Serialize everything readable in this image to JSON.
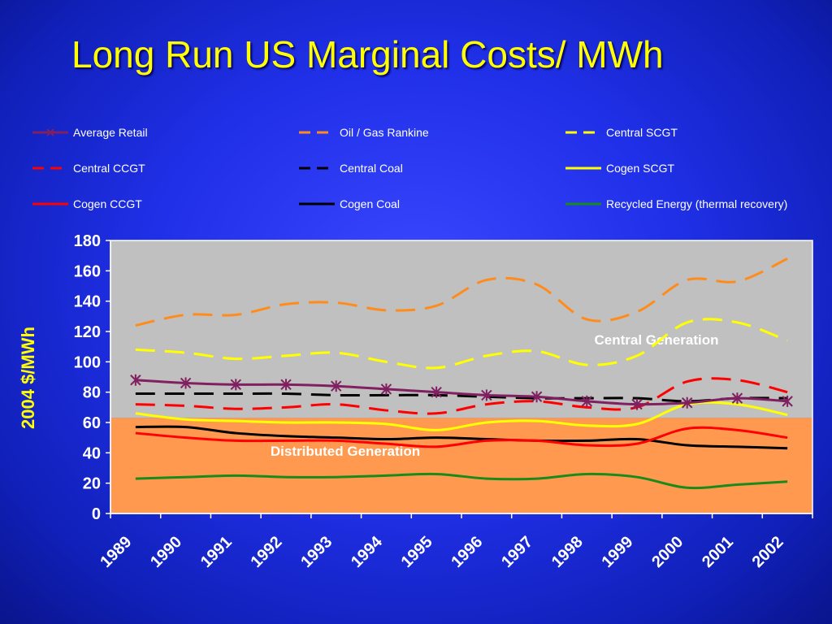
{
  "slide": {
    "title": "Long Run US Marginal Costs/ MWh"
  },
  "chart_data": {
    "type": "line",
    "ylabel": "2004 $/MWh",
    "ylim": [
      0,
      180
    ],
    "yticks": [
      0,
      20,
      40,
      60,
      80,
      100,
      120,
      140,
      160,
      180
    ],
    "categories": [
      "1989",
      "1990",
      "1991",
      "1992",
      "1993",
      "1994",
      "1995",
      "1996",
      "1997",
      "1998",
      "1999",
      "2000",
      "2001",
      "2002"
    ],
    "legend_position": "top",
    "plot_background": "#c0c0c0",
    "regions": [
      {
        "label": "Central Generation",
        "y_from": 63,
        "y_to": 180,
        "color": "#c0c0c0"
      },
      {
        "label": "Distributed Generation",
        "y_from": 0,
        "y_to": 63,
        "color": "#ff9950"
      }
    ],
    "series": [
      {
        "name": "Average Retail",
        "color": "#802060",
        "style": "solid-marker",
        "values": [
          88,
          86,
          85,
          85,
          84,
          82,
          80,
          78,
          77,
          74,
          72,
          73,
          76,
          74
        ]
      },
      {
        "name": "Oil / Gas Rankine",
        "color": "#ff8c1a",
        "style": "dashed",
        "values": [
          124,
          131,
          131,
          138,
          139,
          134,
          137,
          154,
          151,
          128,
          133,
          154,
          153,
          168
        ]
      },
      {
        "name": "Central SCGT",
        "color": "#ffff00",
        "style": "dashed",
        "values": [
          108,
          106,
          102,
          104,
          106,
          100,
          96,
          104,
          107,
          98,
          104,
          126,
          126,
          114
        ]
      },
      {
        "name": "Central CCGT",
        "color": "#ff0000",
        "style": "dashed",
        "values": [
          72,
          71,
          69,
          70,
          72,
          68,
          66,
          72,
          74,
          70,
          70,
          87,
          88,
          80
        ]
      },
      {
        "name": "Central Coal",
        "color": "#000000",
        "style": "dashed",
        "values": [
          79,
          79,
          79,
          79,
          78,
          78,
          78,
          77,
          76,
          76,
          76,
          74,
          76,
          76
        ]
      },
      {
        "name": "Cogen SCGT",
        "color": "#ffff00",
        "style": "solid",
        "values": [
          66,
          62,
          61,
          60,
          60,
          59,
          55,
          60,
          61,
          58,
          59,
          72,
          72,
          65
        ]
      },
      {
        "name": "Cogen CCGT",
        "color": "#ff0000",
        "style": "solid",
        "values": [
          53,
          50,
          48,
          48,
          48,
          46,
          44,
          48,
          48,
          45,
          46,
          56,
          55,
          50
        ]
      },
      {
        "name": "Cogen Coal",
        "color": "#000000",
        "style": "solid",
        "values": [
          57,
          57,
          53,
          51,
          50,
          49,
          50,
          49,
          48,
          48,
          49,
          45,
          44,
          43
        ]
      },
      {
        "name": "Recycled Energy (thermal recovery)",
        "color": "#1a8a1a",
        "style": "solid",
        "values": [
          23,
          24,
          25,
          24,
          24,
          25,
          26,
          23,
          23,
          26,
          24,
          17,
          19,
          21
        ]
      }
    ]
  }
}
